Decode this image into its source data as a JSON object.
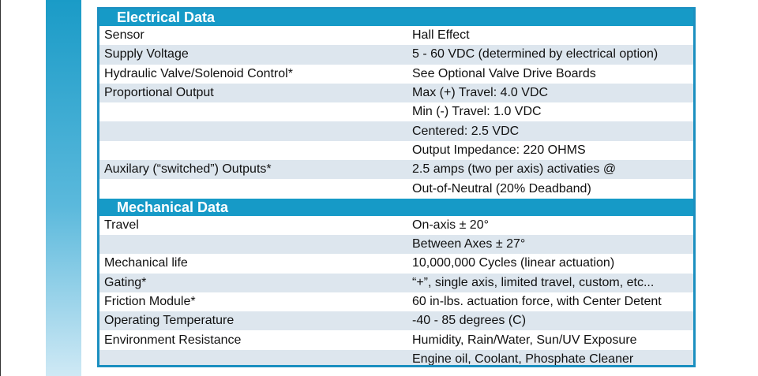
{
  "electrical": {
    "title": "Electrical Data",
    "rows": [
      {
        "label": "Sensor",
        "value": "Hall Effect"
      },
      {
        "label": "Supply Voltage",
        "value": "5 - 60 VDC (determined by electrical option)"
      },
      {
        "label": "Hydraulic Valve/Solenoid Control*",
        "value": "See Optional Valve Drive Boards"
      },
      {
        "label": "Proportional Output",
        "value": "Max (+) Travel: 4.0 VDC"
      },
      {
        "label": "",
        "value": "Min (-) Travel: 1.0 VDC"
      },
      {
        "label": "",
        "value": "Centered: 2.5 VDC"
      },
      {
        "label": "",
        "value": "Output Impedance: 220 OHMS"
      },
      {
        "label": "Auxilary (“switched”) Outputs*",
        "value": "2.5 amps (two per axis) activaties @"
      },
      {
        "label": "",
        "value": "Out-of-Neutral (20% Deadband)"
      }
    ]
  },
  "mechanical": {
    "title": "Mechanical Data",
    "rows": [
      {
        "label": "Travel",
        "value": "On-axis ± 20°"
      },
      {
        "label": "",
        "value": "Between Axes ± 27°"
      },
      {
        "label": "Mechanical life",
        "value": "10,000,000 Cycles (linear actuation)"
      },
      {
        "label": "Gating*",
        "value": "“+”, single axis, limited travel, custom, etc..."
      },
      {
        "label": "Friction Module*",
        "value": "60 in-lbs. actuation force, with Center Detent"
      },
      {
        "label": "Operating Temperature",
        "value": "-40 - 85 degrees (C)"
      },
      {
        "label": "Environment Resistance",
        "value": "Humidity, Rain/Water, Sun/UV Exposure"
      },
      {
        "label": "",
        "value": "Engine oil, Coolant, Phosphate Cleaner"
      }
    ]
  }
}
